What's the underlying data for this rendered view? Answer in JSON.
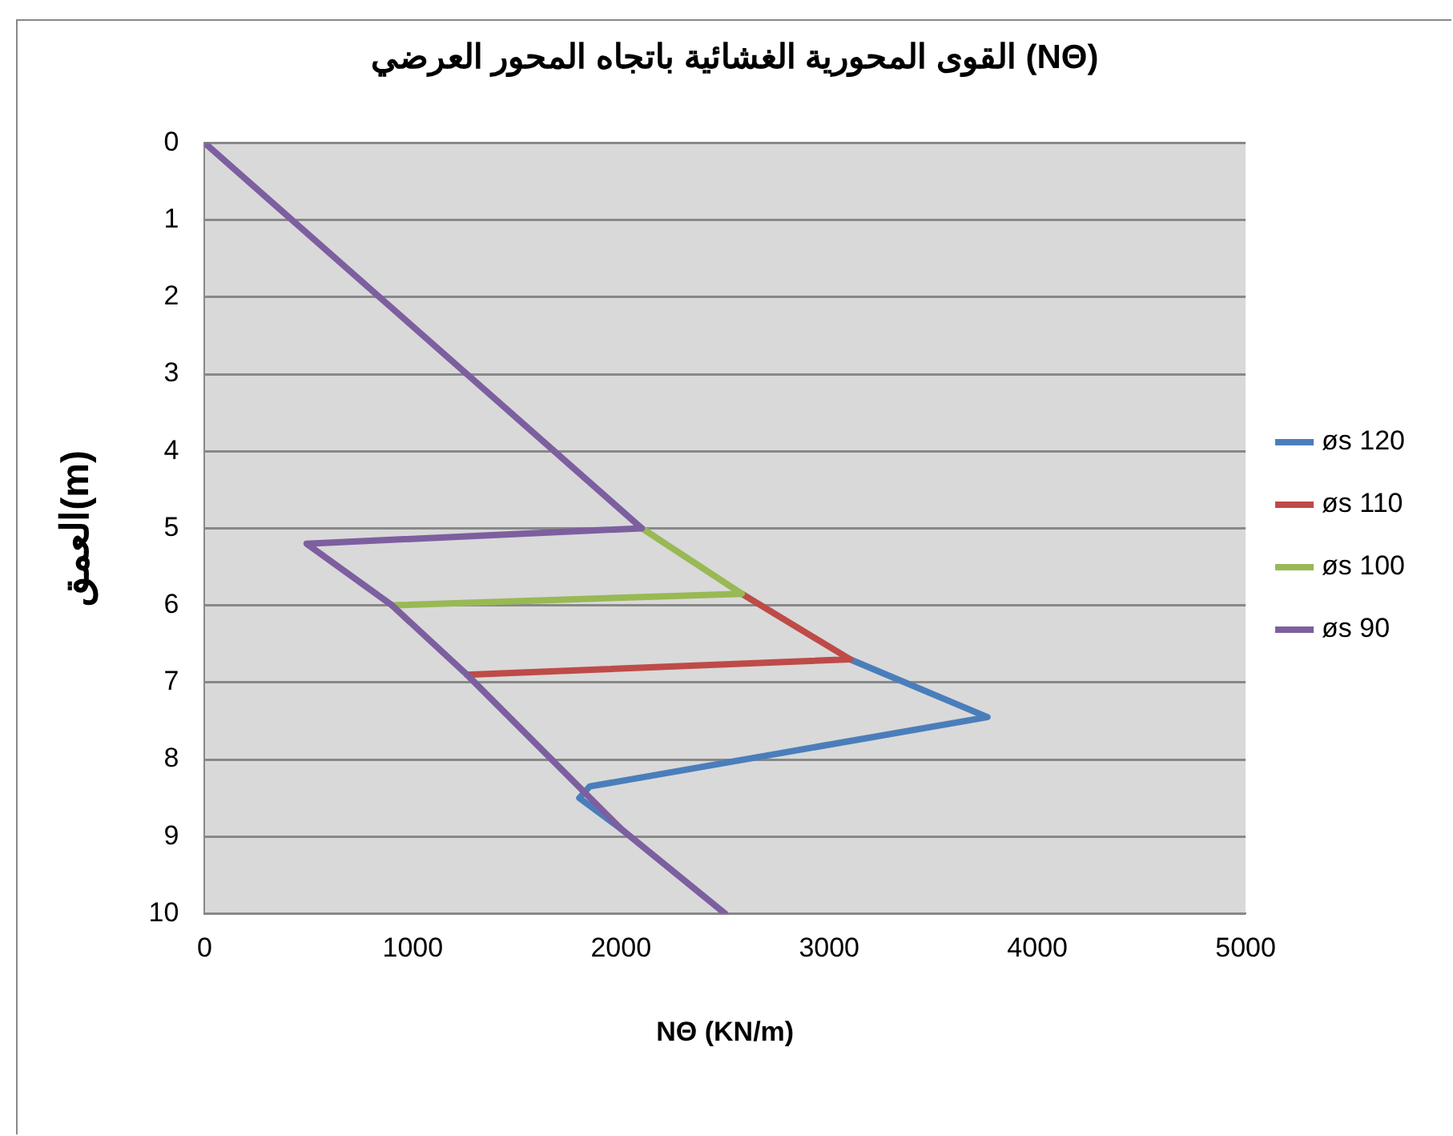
{
  "chart_data": {
    "type": "line",
    "title": "القوى المحورية الغشائية باتجاه المحور العرضي (NΘ)",
    "xlabel": "NΘ (KN/m)",
    "ylabel": "العمق(m)",
    "xlim": [
      0,
      5000
    ],
    "xticks": [
      0,
      1000,
      2000,
      3000,
      4000,
      5000
    ],
    "ylim": [
      10,
      0
    ],
    "yticks": [
      0,
      1,
      2,
      3,
      4,
      5,
      6,
      7,
      8,
      9,
      10
    ],
    "grid": "y",
    "legend": "right",
    "marker": "none",
    "line_style": "solid",
    "series": [
      {
        "name": "øs 120",
        "color": "#4a7ebb",
        "x": [
          3100,
          3760,
          1850,
          1800,
          2000
        ],
        "values": [
          6.7,
          7.45,
          8.35,
          8.5,
          8.9
        ]
      },
      {
        "name": "øs 110",
        "color": "#be4b48",
        "x": [
          2580,
          3100,
          1260
        ],
        "values": [
          5.85,
          6.7,
          6.9
        ]
      },
      {
        "name": "øs 100",
        "color": "#98b954",
        "x": [
          2100,
          2580,
          900
        ],
        "values": [
          5,
          5.85,
          6
        ]
      },
      {
        "name": "øs 90",
        "color": "#7d5fa0",
        "x": [
          0,
          2100,
          490,
          900,
          1260,
          2000,
          2500
        ],
        "values": [
          0,
          5,
          5.2,
          6,
          6.9,
          8.9,
          10
        ]
      }
    ]
  }
}
